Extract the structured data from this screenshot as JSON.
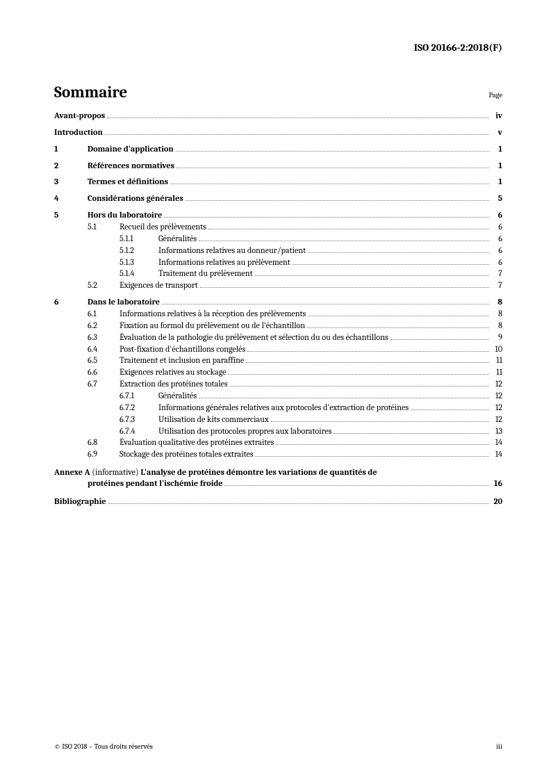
{
  "header": {
    "doc_id": "ISO 20166-2:2018(F)"
  },
  "title": "Sommaire",
  "page_label": "Page",
  "toc": {
    "avant_propos": {
      "label": "Avant-propos",
      "page": "iv"
    },
    "introduction": {
      "label": "Introduction",
      "page": "v"
    },
    "s1": {
      "num": "1",
      "label": "Domaine d'application",
      "page": "1"
    },
    "s2": {
      "num": "2",
      "label": "Références normatives",
      "page": "1"
    },
    "s3": {
      "num": "3",
      "label": "Termes et définitions",
      "page": "1"
    },
    "s4": {
      "num": "4",
      "label": "Considérations générales",
      "page": "5"
    },
    "s5": {
      "num": "5",
      "label": "Hors du laboratoire",
      "page": "6"
    },
    "s5_1": {
      "num": "5.1",
      "label": "Recueil des prélèvements",
      "page": "6"
    },
    "s5_1_1": {
      "num": "5.1.1",
      "label": "Généralités",
      "page": "6"
    },
    "s5_1_2": {
      "num": "5.1.2",
      "label": "Informations relatives au donneur/patient",
      "page": "6"
    },
    "s5_1_3": {
      "num": "5.1.3",
      "label": "Informations relatives au prélèvement",
      "page": "6"
    },
    "s5_1_4": {
      "num": "5.1.4",
      "label": "Traitement du prélèvement",
      "page": "7"
    },
    "s5_2": {
      "num": "5.2",
      "label": "Exigences de transport",
      "page": "7"
    },
    "s6": {
      "num": "6",
      "label": "Dans le laboratoire",
      "page": "8"
    },
    "s6_1": {
      "num": "6.1",
      "label": "Informations relatives à la réception des prélèvements",
      "page": "8"
    },
    "s6_2": {
      "num": "6.2",
      "label": "Fixation au formol du prélèvement ou de l'échantillon",
      "page": "8"
    },
    "s6_3": {
      "num": "6.3",
      "label": "Évaluation de la pathologie du prélèvement et sélection du ou des échantillons",
      "page": "9"
    },
    "s6_4": {
      "num": "6.4",
      "label": "Post-fixation d'échantillons congelés",
      "page": "10"
    },
    "s6_5": {
      "num": "6.5",
      "label": "Traitement et inclusion en paraffine",
      "page": "11"
    },
    "s6_6": {
      "num": "6.6",
      "label": "Exigences relatives au stockage",
      "page": "11"
    },
    "s6_7": {
      "num": "6.7",
      "label": "Extraction des protéines totales",
      "page": "12"
    },
    "s6_7_1": {
      "num": "6.7.1",
      "label": "Généralités",
      "page": "12"
    },
    "s6_7_2": {
      "num": "6.7.2",
      "label": "Informations générales relatives aux protocoles d'extraction de protéines",
      "page": "12"
    },
    "s6_7_3": {
      "num": "6.7.3",
      "label": "Utilisation de kits commerciaux",
      "page": "12"
    },
    "s6_7_4": {
      "num": "6.7.4",
      "label": "Utilisation des protocoles propres aux laboratoires",
      "page": "13"
    },
    "s6_8": {
      "num": "6.8",
      "label": "Évaluation qualitative des protéines extraites",
      "page": "14"
    },
    "s6_9": {
      "num": "6.9",
      "label": "Stockage des protéines totales extraites",
      "page": "14"
    },
    "annex": {
      "prefix": "Annexe A",
      "paren": "(informative)",
      "title_line1": "L'analyse de protéines démontre les variations de quantités de",
      "title_line2": "protéines pendant l'ischémie froide",
      "page": "16"
    },
    "biblio": {
      "label": "Bibliographie",
      "page": "20"
    }
  },
  "footer": {
    "copyright": "© ISO 2018 – Tous droits réservés",
    "page_num": "iii"
  }
}
